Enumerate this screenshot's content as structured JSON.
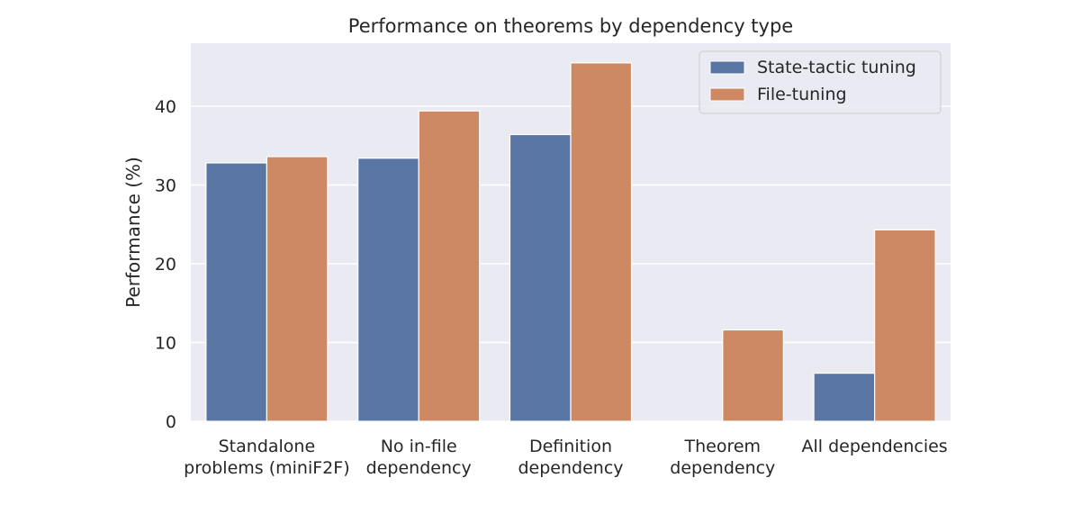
{
  "chart_data": {
    "type": "bar",
    "title": "Performance on theorems by dependency type",
    "xlabel": "",
    "ylabel": "Performance (%)",
    "ylim": [
      0,
      48
    ],
    "yticks": [
      0,
      10,
      20,
      30,
      40
    ],
    "grid": true,
    "legend_position": "top-right",
    "categories": [
      [
        "Standalone",
        "problems (miniF2F)"
      ],
      [
        "No in-file",
        "dependency"
      ],
      [
        "Definition",
        "dependency"
      ],
      [
        "Theorem",
        "dependency"
      ],
      [
        "All dependencies"
      ]
    ],
    "series": [
      {
        "name": "State-tactic tuning",
        "color": "#5875a4",
        "values": [
          32.8,
          33.4,
          36.4,
          0,
          6.1
        ]
      },
      {
        "name": "File-tuning",
        "color": "#cc8963",
        "values": [
          33.6,
          39.4,
          45.5,
          11.6,
          24.3
        ]
      }
    ],
    "background_color": "#eaeaf2"
  }
}
